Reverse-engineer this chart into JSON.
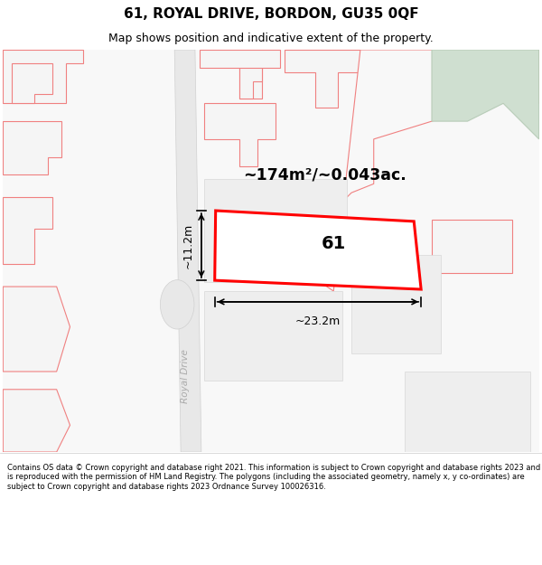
{
  "title_line1": "61, ROYAL DRIVE, BORDON, GU35 0QF",
  "title_line2": "Map shows position and indicative extent of the property.",
  "area_text": "~174m²/~0.043ac.",
  "label_number": "61",
  "dim_width": "~23.2m",
  "dim_height": "~11.2m",
  "road_label": "Royal Drive",
  "footer_text": "Contains OS data © Crown copyright and database right 2021. This information is subject to Crown copyright and database rights 2023 and is reproduced with the permission of HM Land Registry. The polygons (including the associated geometry, namely x, y co-ordinates) are subject to Crown copyright and database rights 2023 Ordnance Survey 100026316.",
  "title_fontsize": 11,
  "subtitle_fontsize": 9,
  "footer_fontsize": 6.0,
  "map_bg": "#f7f7f7",
  "highlight_color": "#ff0000",
  "highlight_fill": "#ffffff",
  "building_outline_color": "#f08080",
  "green_fill": "#cfdfd0",
  "green_outline": "#b8ccb8",
  "road_fill": "#e8e8e8",
  "road_edge": "#d0d0d0",
  "block_fill": "#ebebeb",
  "block_edge": "#d8d8d8"
}
